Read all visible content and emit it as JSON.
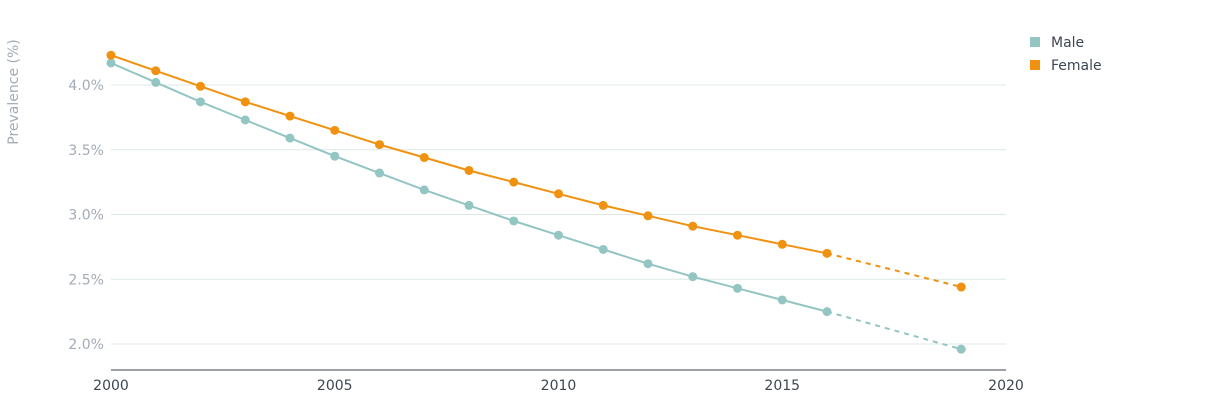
{
  "chart_data": {
    "type": "line",
    "ylabel": "Prevalence (%)",
    "xlabel": "",
    "xlim": [
      2000,
      2020
    ],
    "ylim": [
      1.8,
      4.4
    ],
    "x_ticks": [
      2000,
      2005,
      2010,
      2015,
      2020
    ],
    "y_ticks": [
      2.0,
      2.5,
      3.0,
      3.5,
      4.0
    ],
    "y_tick_labels": [
      "2.0%",
      "2.5%",
      "3.0%",
      "3.5%",
      "4.0%"
    ],
    "grid": "horizontal",
    "legend_position": "top-right",
    "series": [
      {
        "name": "Male",
        "color": "#93c5c3",
        "x": [
          2000,
          2001,
          2002,
          2003,
          2004,
          2005,
          2006,
          2007,
          2008,
          2009,
          2010,
          2011,
          2012,
          2013,
          2014,
          2015,
          2016
        ],
        "y": [
          4.17,
          4.02,
          3.87,
          3.73,
          3.59,
          3.45,
          3.32,
          3.19,
          3.07,
          2.95,
          2.84,
          2.73,
          2.62,
          2.52,
          2.43,
          2.34,
          2.25
        ],
        "projection_x": [
          2016,
          2019
        ],
        "projection_y": [
          2.25,
          1.96
        ]
      },
      {
        "name": "Female",
        "color": "#f0910f",
        "x": [
          2000,
          2001,
          2002,
          2003,
          2004,
          2005,
          2006,
          2007,
          2008,
          2009,
          2010,
          2011,
          2012,
          2013,
          2014,
          2015,
          2016
        ],
        "y": [
          4.23,
          4.11,
          3.99,
          3.87,
          3.76,
          3.65,
          3.54,
          3.44,
          3.34,
          3.25,
          3.16,
          3.07,
          2.99,
          2.91,
          2.84,
          2.77,
          2.7
        ],
        "projection_x": [
          2016,
          2019
        ],
        "projection_y": [
          2.7,
          2.44
        ]
      }
    ]
  }
}
